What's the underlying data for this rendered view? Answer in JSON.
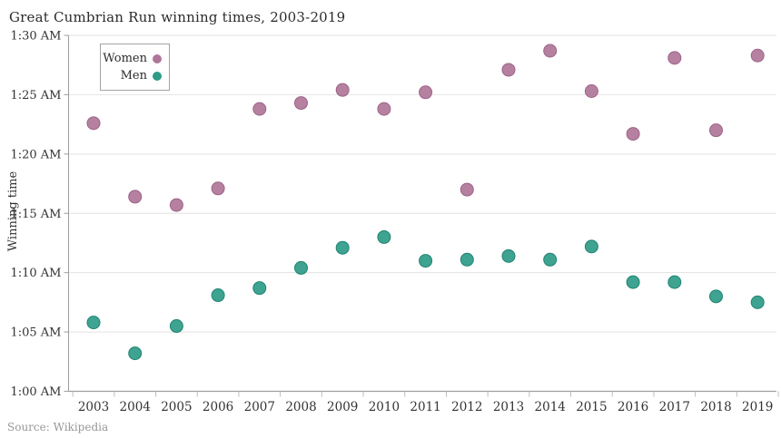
{
  "title": "Great Cumbrian Run winning times, 2003-2019",
  "source": "Source: Wikipedia",
  "legend": {
    "women_label": "Women",
    "men_label": "Men"
  },
  "colors": {
    "women": "#b07699",
    "women_stroke": "#9c6387",
    "men": "#2e9b87",
    "men_stroke": "#218473",
    "grid": "#e2e2e2",
    "axis": "#9e9e9e",
    "tick": "#bdbdbd",
    "label_text": "#333333",
    "muted_text": "#979797"
  },
  "chart_data": {
    "type": "scatter",
    "title": "Great Cumbrian Run winning times, 2003-2019",
    "xlabel": "",
    "ylabel": "Winning time",
    "x": [
      2003,
      2004,
      2005,
      2006,
      2007,
      2008,
      2009,
      2010,
      2011,
      2012,
      2013,
      2014,
      2015,
      2016,
      2017,
      2018,
      2019
    ],
    "series": [
      {
        "name": "Women",
        "color_key": "women",
        "unit": "minutes (time of 1:MM elapsed)",
        "values_minutes": [
          82.6,
          76.4,
          75.7,
          77.1,
          83.8,
          84.3,
          85.4,
          83.8,
          85.2,
          77.0,
          87.1,
          88.7,
          85.3,
          81.7,
          88.1,
          82.0,
          88.3
        ]
      },
      {
        "name": "Men",
        "color_key": "men",
        "unit": "minutes (time of 1:MM elapsed)",
        "values_minutes": [
          65.8,
          63.2,
          65.5,
          68.1,
          68.7,
          70.4,
          72.1,
          73.0,
          71.0,
          71.1,
          71.4,
          71.1,
          72.2,
          69.2,
          69.2,
          68.0,
          67.5
        ]
      }
    ],
    "y_ticks": [
      {
        "minutes": 60,
        "label": "1:00 AM"
      },
      {
        "minutes": 65,
        "label": "1:05 AM"
      },
      {
        "minutes": 70,
        "label": "1:10 AM"
      },
      {
        "minutes": 75,
        "label": "1:15 AM"
      },
      {
        "minutes": 80,
        "label": "1:20 AM"
      },
      {
        "minutes": 85,
        "label": "1:25 AM"
      },
      {
        "minutes": 90,
        "label": "1:30 AM"
      }
    ],
    "ylim_minutes": [
      60,
      90
    ],
    "grid": true,
    "legend_position": "top-left"
  }
}
